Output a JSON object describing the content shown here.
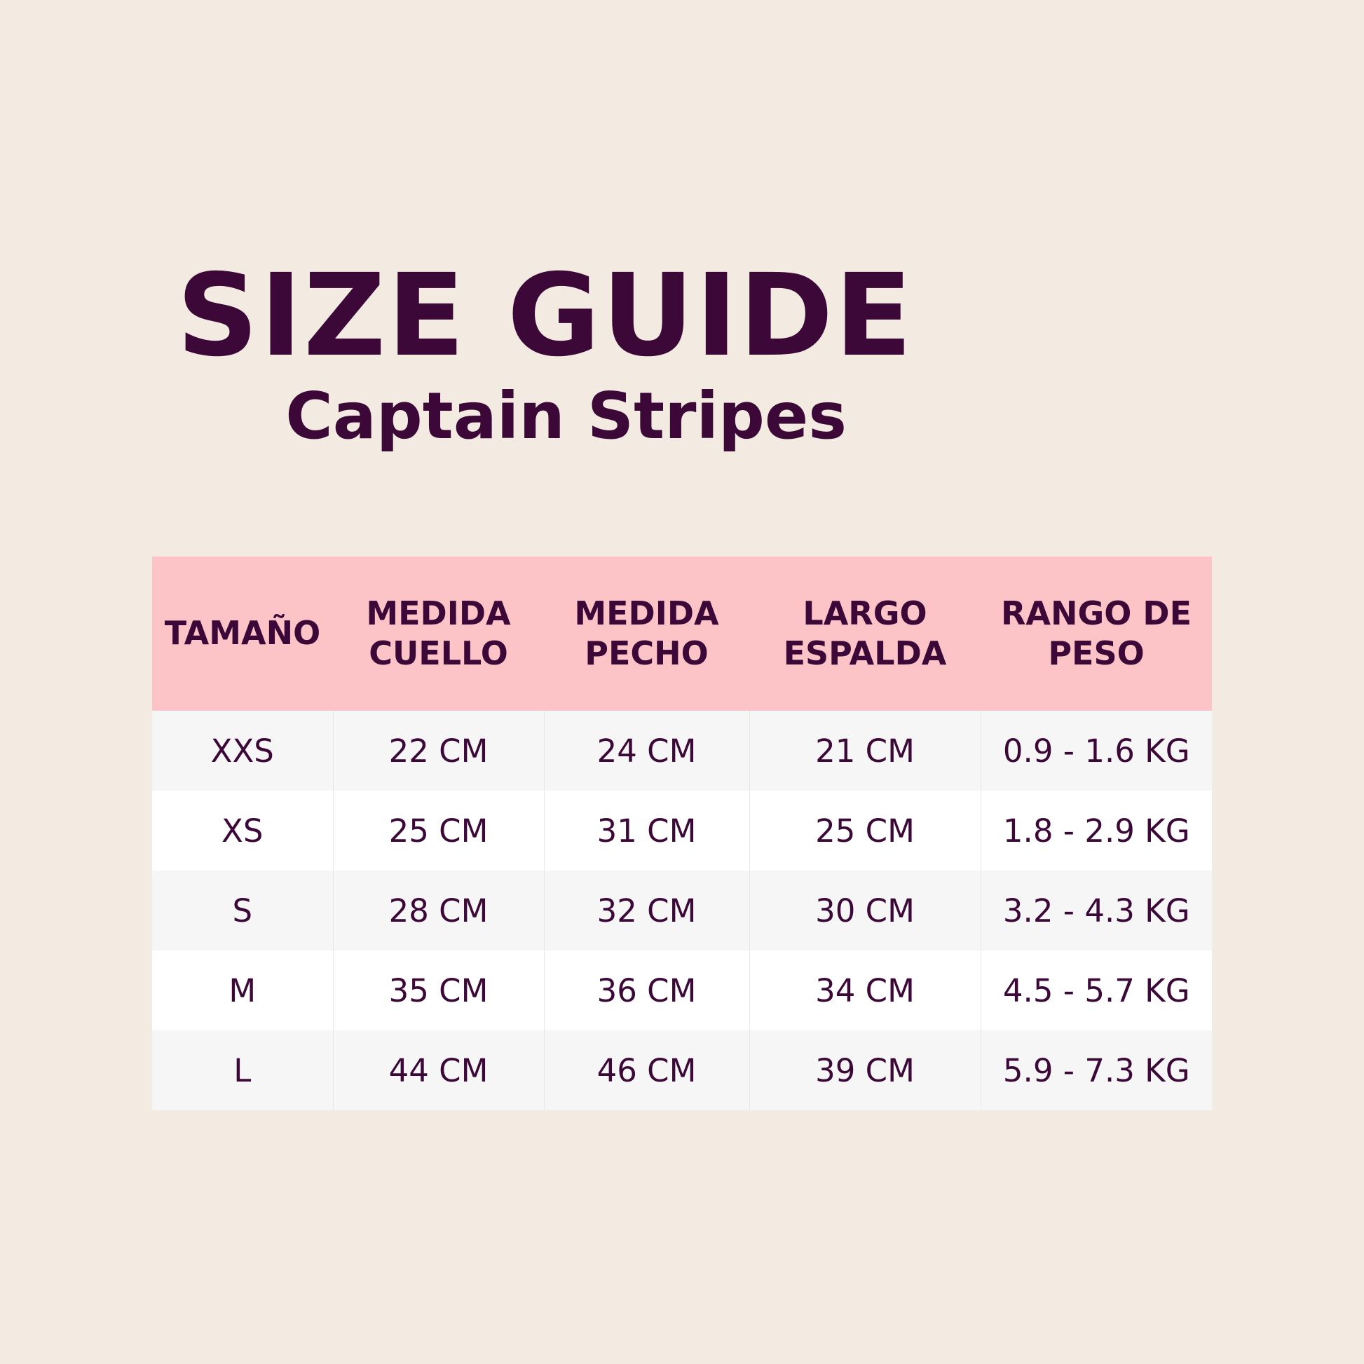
{
  "header": {
    "title": "SIZE GUIDE",
    "subtitle": "Captain Stripes"
  },
  "table": {
    "columns": [
      "TAMAÑO",
      "MEDIDA CUELLO",
      "MEDIDA PECHO",
      "LARGO ESPALDA",
      "RANGO DE PESO"
    ],
    "rows": [
      [
        "XXS",
        "22 CM",
        "24 CM",
        "21 CM",
        "0.9 - 1.6 KG"
      ],
      [
        "XS",
        "25 CM",
        "31 CM",
        "25 CM",
        "1.8 - 2.9 KG"
      ],
      [
        "S",
        "28 CM",
        "32 CM",
        "30 CM",
        "3.2 - 4.3 KG"
      ],
      [
        "M",
        "35 CM",
        "36 CM",
        "34 CM",
        "4.5 - 5.7 KG"
      ],
      [
        "L",
        "44 CM",
        "46 CM",
        "39 CM",
        "5.9 - 7.3 KG"
      ]
    ]
  }
}
